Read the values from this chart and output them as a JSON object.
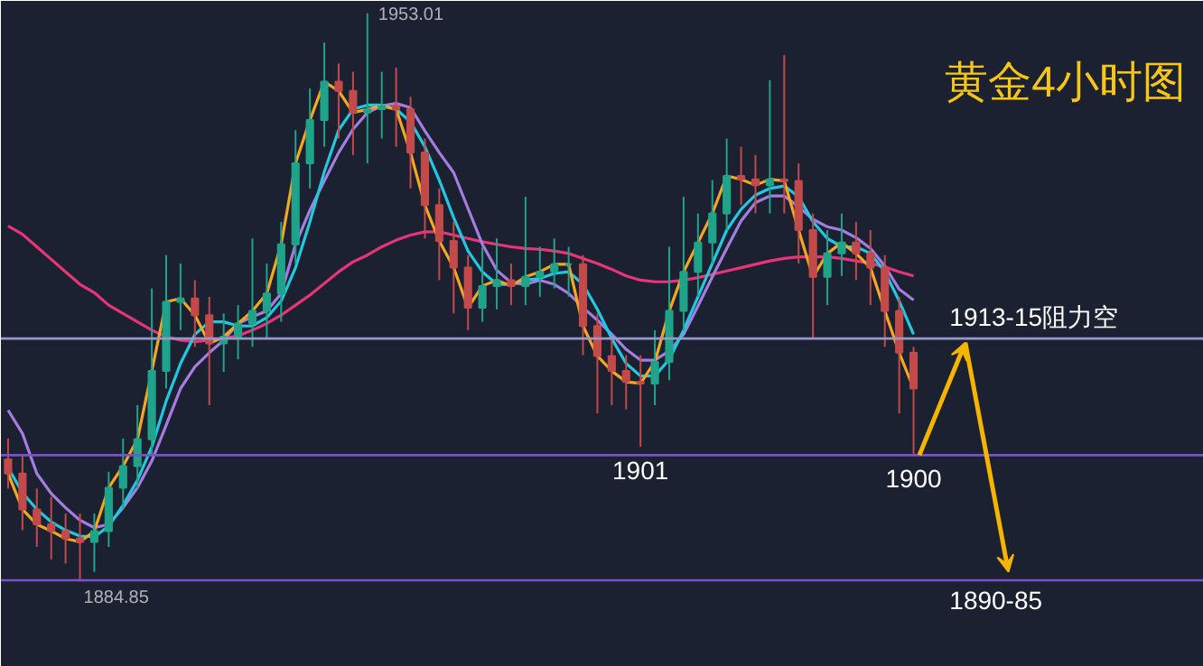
{
  "chart_data": {
    "type": "candlestick",
    "title": "黄金4小时图",
    "categories": [
      null,
      null,
      null,
      null,
      null,
      null,
      null,
      null,
      null,
      null,
      null,
      null,
      null,
      null,
      null,
      null,
      null,
      null,
      null,
      null,
      null,
      null,
      null,
      null,
      null,
      null,
      null,
      null,
      null,
      null,
      null,
      null,
      null,
      null,
      null,
      null,
      null,
      null,
      null,
      null,
      null,
      null,
      null,
      null,
      null,
      null,
      null,
      null,
      null,
      null,
      null,
      null,
      null,
      null,
      null,
      null,
      null,
      null,
      null,
      null,
      null,
      null,
      null,
      null
    ],
    "ohlc": [
      [
        1899.5,
        1902,
        1896,
        1897.8
      ],
      [
        1897.8,
        1900,
        1891,
        1893.5
      ],
      [
        1893.5,
        1896,
        1889,
        1891.7
      ],
      [
        1891.7,
        1895,
        1887.5,
        1890.9
      ],
      [
        1890.9,
        1893,
        1887,
        1890.0
      ],
      [
        1890.0,
        1893,
        1884.85,
        1889.6
      ],
      [
        1889.6,
        1893,
        1886,
        1890.9
      ],
      [
        1890.9,
        1898,
        1889,
        1896.1
      ],
      [
        1896.1,
        1902,
        1893.5,
        1898.7
      ],
      [
        1898.7,
        1906,
        1896,
        1901.9
      ],
      [
        1901.9,
        1920,
        1900,
        1910.1
      ],
      [
        1910.1,
        1924,
        1908,
        1918.4
      ],
      [
        1918.4,
        1923,
        1915,
        1918.8
      ],
      [
        1918.8,
        1921,
        1913,
        1916.8
      ],
      [
        1916.8,
        1919,
        1906,
        1913.4
      ],
      [
        1913.4,
        1917,
        1910,
        1914.2
      ],
      [
        1914.2,
        1918,
        1911.5,
        1915.8
      ],
      [
        1915.8,
        1926,
        1913,
        1917.3
      ],
      [
        1917.3,
        1923,
        1914,
        1919.4
      ],
      [
        1919.4,
        1928,
        1916,
        1925.3
      ],
      [
        1925.3,
        1939,
        1923,
        1935.0
      ],
      [
        1935.0,
        1944,
        1932,
        1940.2
      ],
      [
        1940.2,
        1949.5,
        1937,
        1944.8
      ],
      [
        1944.8,
        1947,
        1938,
        1943.7
      ],
      [
        1943.7,
        1946,
        1936,
        1941.1
      ],
      [
        1941.1,
        1953.01,
        1935,
        1941.5
      ],
      [
        1941.5,
        1946,
        1938,
        1941.9
      ],
      [
        1941.9,
        1946.5,
        1937,
        1941.5
      ],
      [
        1941.5,
        1943,
        1932,
        1936.3
      ],
      [
        1936.3,
        1938,
        1926,
        1930.0
      ],
      [
        1930.0,
        1932,
        1921,
        1925.7
      ],
      [
        1925.7,
        1928,
        1917,
        1922.5
      ],
      [
        1922.5,
        1924,
        1915,
        1917.7
      ],
      [
        1917.7,
        1925,
        1916,
        1920.3
      ],
      [
        1920.3,
        1926,
        1917.5,
        1921.0
      ],
      [
        1921.0,
        1923,
        1918,
        1920.3
      ],
      [
        1920.3,
        1931,
        1918,
        1921.4
      ],
      [
        1921.4,
        1925,
        1919,
        1922.0
      ],
      [
        1922.0,
        1926,
        1920,
        1922.9
      ],
      [
        1922.9,
        1925,
        1919,
        1922.9
      ],
      [
        1922.9,
        1924,
        1912,
        1915.5
      ],
      [
        1915.5,
        1917,
        1905,
        1911.9
      ],
      [
        1911.9,
        1914,
        1906,
        1910.1
      ],
      [
        1910.1,
        1912,
        1905.5,
        1908.8
      ],
      [
        1908.8,
        1912,
        1901.0,
        1908.6
      ],
      [
        1908.6,
        1915,
        1906,
        1911.2
      ],
      [
        1911.2,
        1925,
        1909,
        1917.3
      ],
      [
        1917.3,
        1931,
        1915,
        1922.0
      ],
      [
        1922.0,
        1929,
        1919,
        1925.5
      ],
      [
        1925.5,
        1933,
        1923,
        1929.0
      ],
      [
        1929.0,
        1938,
        1927,
        1933.5
      ],
      [
        1933.5,
        1937,
        1930,
        1933.1
      ],
      [
        1933.1,
        1936,
        1929,
        1932.4
      ],
      [
        1932.4,
        1945,
        1929,
        1933.1
      ],
      [
        1933.1,
        1948.0,
        1929,
        1932.9
      ],
      [
        1932.9,
        1935,
        1923,
        1927.0
      ],
      [
        1927.0,
        1929,
        1914,
        1921.4
      ],
      [
        1921.4,
        1927,
        1918,
        1924.2
      ],
      [
        1924.2,
        1929,
        1921.5,
        1925.5
      ],
      [
        1925.5,
        1928,
        1921,
        1924.2
      ],
      [
        1924.2,
        1927,
        1918,
        1922.5
      ],
      [
        1922.5,
        1924,
        1913,
        1917.3
      ],
      [
        1917.3,
        1919,
        1905,
        1912.3
      ],
      [
        1912.3,
        1913,
        1900.0,
        1908.0
      ]
    ],
    "series": [
      {
        "type": "line",
        "color": "#e8357a",
        "values": [
          1927.5,
          1926.5,
          1925,
          1923.5,
          1922,
          1920.5,
          1919.5,
          1918,
          1917,
          1916,
          1915,
          1914.2,
          1913.8,
          1913.6,
          1913.8,
          1914,
          1914.3,
          1915,
          1915.8,
          1916.8,
          1918,
          1919.2,
          1920.6,
          1922,
          1923.2,
          1924,
          1925,
          1925.8,
          1926.4,
          1926.8,
          1926.8,
          1926.4,
          1926,
          1925.6,
          1925.3,
          1925,
          1924.8,
          1924.7,
          1924.5,
          1924.2,
          1923.6,
          1923,
          1922.3,
          1921.5,
          1921,
          1920.8,
          1920.8,
          1921,
          1921.3,
          1921.7,
          1922.1,
          1922.5,
          1922.9,
          1923.3,
          1923.6,
          1923.8,
          1923.8,
          1923.8,
          1923.6,
          1923.3,
          1923,
          1922.6,
          1922,
          1921.5
        ]
      },
      {
        "type": "line",
        "color": "#a57de0",
        "values": [
          1905.4,
          1902.6,
          1897.8,
          1895.4,
          1893.7,
          1892.2,
          1891.3,
          1891.7,
          1893.7,
          1896.1,
          1899.3,
          1903.6,
          1908.0,
          1910.6,
          1912.3,
          1913.8,
          1915.8,
          1916.6,
          1917.3,
          1919.4,
          1925.3,
          1929.4,
          1932.9,
          1936.3,
          1939.1,
          1941.1,
          1941.9,
          1942.2,
          1941.7,
          1938.9,
          1936.3,
          1933.9,
          1929.6,
          1925.3,
          1922.2,
          1920.7,
          1920.5,
          1921.0,
          1920.5,
          1919.4,
          1917.7,
          1916.2,
          1914.5,
          1912.7,
          1911.4,
          1911.4,
          1912.5,
          1914.5,
          1917.9,
          1921.4,
          1924.8,
          1928.1,
          1930.3,
          1931.1,
          1931.1,
          1929.8,
          1928.3,
          1927.4,
          1927.0,
          1926.1,
          1924.8,
          1922.7,
          1919.9,
          1918.6
        ]
      },
      {
        "type": "line",
        "color": "#22c8e0",
        "values": [
          1898.5,
          1895.5,
          1893.5,
          1892,
          1891,
          1890.3,
          1890.2,
          1891.5,
          1894,
          1897,
          1901,
          1906.5,
          1911,
          1914.5,
          1916,
          1916,
          1915.5,
          1915.5,
          1916.5,
          1918.5,
          1922.5,
          1928,
          1934,
          1939,
          1941.5,
          1942,
          1942,
          1941.5,
          1940,
          1937,
          1933,
          1928.5,
          1924.5,
          1922,
          1920.5,
          1920.5,
          1921,
          1921.2,
          1921.8,
          1922,
          1920.5,
          1917.5,
          1914,
          1911,
          1909.5,
          1909.5,
          1911.5,
          1915,
          1919,
          1923,
          1927,
          1929.5,
          1931.2,
          1932,
          1932.3,
          1931,
          1928,
          1926,
          1925,
          1925,
          1924.2,
          1922,
          1918.5,
          1914.5
        ]
      },
      {
        "type": "line",
        "color": "#f5a623",
        "values": [
          1897.8,
          1893.5,
          1891.7,
          1890.9,
          1890.0,
          1889.6,
          1890.9,
          1896.1,
          1898.7,
          1901.9,
          1910.1,
          1918.4,
          1918.8,
          1916.8,
          1913.4,
          1914.2,
          1915.8,
          1917.3,
          1919.4,
          1925.3,
          1935.0,
          1940.2,
          1944.8,
          1943.7,
          1941.1,
          1941.5,
          1941.9,
          1941.5,
          1936.3,
          1930.0,
          1925.7,
          1922.5,
          1917.7,
          1920.3,
          1921.0,
          1920.3,
          1921.4,
          1922.0,
          1922.9,
          1922.9,
          1915.5,
          1911.9,
          1910.1,
          1908.8,
          1908.6,
          1911.2,
          1917.3,
          1922.0,
          1925.5,
          1929.0,
          1933.5,
          1933.1,
          1932.4,
          1933.1,
          1932.9,
          1927.0,
          1921.4,
          1924.2,
          1925.5,
          1924.2,
          1922.5,
          1917.3,
          1912.3,
          1908.0
        ]
      }
    ],
    "ylim": [
      1874.6,
      1954.5
    ],
    "ref_lines": [
      {
        "axis": "y",
        "value": 1914,
        "label": "1913-15阻力空",
        "color": "#9a98c8"
      },
      {
        "axis": "y",
        "value": 1900,
        "color": "#7a52c8"
      },
      {
        "axis": "y",
        "value": 1885,
        "color": "#7a52c8"
      }
    ],
    "annotations": [
      "1953.01",
      "1884.85",
      "1901",
      "1900",
      "1890-85"
    ],
    "tick_labels": false,
    "grid": false
  }
}
